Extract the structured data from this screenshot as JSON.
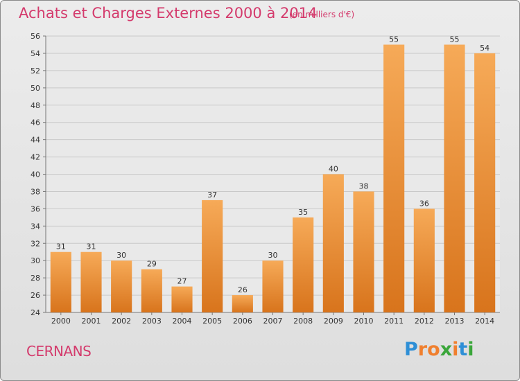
{
  "title": "Achats et Charges Externes 2000 à 2014",
  "unit": "(en milliers d'€)",
  "commune": "CERNANS",
  "logo": {
    "letters": [
      "P",
      "r",
      "o",
      "x",
      "i",
      "t",
      "i"
    ],
    "colors": [
      "#2e8fd6",
      "#f07f2e",
      "#f07f2e",
      "#3aa63a",
      "#f07f2e",
      "#2e8fd6",
      "#3aa63a"
    ]
  },
  "colors": {
    "bar_light": "#f6aa58",
    "bar_dark": "#d8741c",
    "title": "#d43a6c"
  },
  "chart_data": {
    "type": "bar",
    "categories": [
      "2000",
      "2001",
      "2002",
      "2003",
      "2004",
      "2005",
      "2006",
      "2007",
      "2008",
      "2009",
      "2010",
      "2011",
      "2012",
      "2013",
      "2014"
    ],
    "values": [
      31,
      31,
      30,
      29,
      27,
      37,
      26,
      30,
      35,
      40,
      38,
      55,
      36,
      55,
      54
    ],
    "ylim": [
      24,
      56
    ],
    "yticks": [
      24,
      26,
      28,
      30,
      32,
      34,
      36,
      38,
      40,
      42,
      44,
      46,
      48,
      50,
      52,
      54,
      56
    ],
    "grid": true
  }
}
